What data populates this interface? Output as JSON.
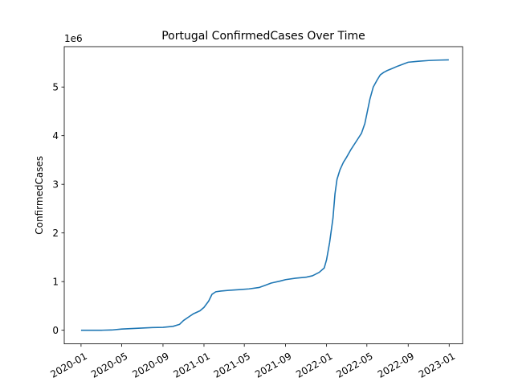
{
  "chart_data": {
    "type": "line",
    "title": "Portugal  ConfirmedCases Over Time",
    "xlabel": "",
    "ylabel": "ConfirmedCases",
    "y_offset_label": "1e6",
    "y_scale_factor": 1000000,
    "xlim": [
      "2019-11-12",
      "2023-02-10"
    ],
    "ylim": [
      -280000,
      5830000
    ],
    "x_ticks": [
      {
        "date": "2020-01-01",
        "label": "2020-01"
      },
      {
        "date": "2020-05-01",
        "label": "2020-05"
      },
      {
        "date": "2020-09-01",
        "label": "2020-09"
      },
      {
        "date": "2021-01-01",
        "label": "2021-01"
      },
      {
        "date": "2021-05-01",
        "label": "2021-05"
      },
      {
        "date": "2021-09-01",
        "label": "2021-09"
      },
      {
        "date": "2022-01-01",
        "label": "2022-01"
      },
      {
        "date": "2022-05-01",
        "label": "2022-05"
      },
      {
        "date": "2022-09-01",
        "label": "2022-09"
      },
      {
        "date": "2023-01-01",
        "label": "2023-01"
      }
    ],
    "y_ticks": [
      {
        "value": 0,
        "label": "0"
      },
      {
        "value": 1000000,
        "label": "1"
      },
      {
        "value": 2000000,
        "label": "2"
      },
      {
        "value": 3000000,
        "label": "3"
      },
      {
        "value": 4000000,
        "label": "4"
      },
      {
        "value": 5000000,
        "label": "5"
      }
    ],
    "grid": false,
    "line_color": "#1f77b4",
    "series": [
      {
        "x": [
          "2020-01-01",
          "2020-03-01",
          "2020-04-01",
          "2020-05-01",
          "2020-06-01",
          "2020-07-01",
          "2020-08-01",
          "2020-09-01",
          "2020-10-01",
          "2020-10-20",
          "2020-11-01",
          "2020-11-20",
          "2020-12-01",
          "2020-12-20",
          "2021-01-01",
          "2021-01-15",
          "2021-01-25",
          "2021-02-05",
          "2021-02-20",
          "2021-03-15",
          "2021-04-15",
          "2021-05-15",
          "2021-06-15",
          "2021-07-01",
          "2021-07-20",
          "2021-08-15",
          "2021-09-01",
          "2021-10-01",
          "2021-11-01",
          "2021-11-20",
          "2021-12-10",
          "2021-12-25",
          "2022-01-01",
          "2022-01-10",
          "2022-01-20",
          "2022-01-26",
          "2022-02-01",
          "2022-02-10",
          "2022-02-20",
          "2022-03-01",
          "2022-03-15",
          "2022-04-01",
          "2022-04-15",
          "2022-04-25",
          "2022-05-01",
          "2022-05-10",
          "2022-05-20",
          "2022-06-01",
          "2022-06-10",
          "2022-06-20",
          "2022-07-01",
          "2022-07-15",
          "2022-08-01",
          "2022-09-01",
          "2022-10-01",
          "2022-11-01",
          "2022-12-01",
          "2022-12-31"
        ],
        "y": [
          0,
          0,
          5000,
          25000,
          35000,
          45000,
          55000,
          60000,
          80000,
          120000,
          200000,
          290000,
          340000,
          400000,
          470000,
          600000,
          740000,
          790000,
          805000,
          820000,
          835000,
          850000,
          880000,
          920000,
          970000,
          1010000,
          1040000,
          1070000,
          1090000,
          1120000,
          1190000,
          1280000,
          1450000,
          1800000,
          2300000,
          2800000,
          3100000,
          3300000,
          3450000,
          3550000,
          3720000,
          3900000,
          4050000,
          4250000,
          4450000,
          4750000,
          5000000,
          5150000,
          5250000,
          5300000,
          5340000,
          5380000,
          5430000,
          5510000,
          5530000,
          5545000,
          5553000,
          5558000
        ]
      }
    ]
  }
}
